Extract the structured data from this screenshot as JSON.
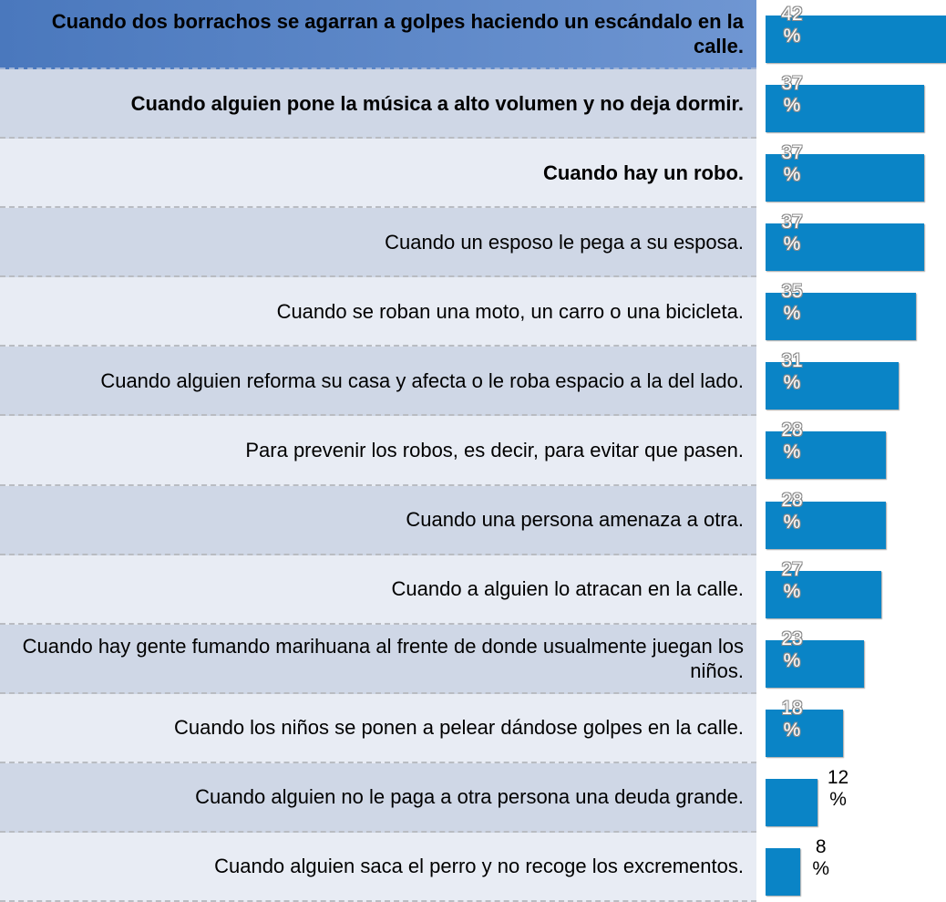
{
  "chart_data": {
    "type": "bar",
    "orientation": "horizontal",
    "color": "#0a84c6",
    "categories": [
      "Cuando dos borrachos se agarran a golpes haciendo un escándalo en la calle.",
      "Cuando alguien pone la música a alto volumen y no deja dormir.",
      "Cuando hay un robo.",
      "Cuando un esposo le pega a su esposa.",
      "Cuando se roban una moto, un carro o una bicicleta.",
      "Cuando alguien reforma su casa y afecta o le roba espacio a la del lado.",
      "Para prevenir los robos, es decir, para evitar que pasen.",
      "Cuando una persona amenaza a otra.",
      "Cuando a alguien lo atracan en la calle.",
      "Cuando hay gente fumando marihuana al frente de donde usualmente juegan los niños.",
      "Cuando los niños se ponen a pelear dándose golpes en la calle.",
      "Cuando alguien no le paga a otra persona una deuda grande.",
      "Cuando alguien saca el perro y no recoge los excrementos."
    ],
    "bold": [
      true,
      true,
      true,
      false,
      false,
      false,
      false,
      false,
      false,
      false,
      false,
      false,
      false
    ],
    "values": [
      42,
      37,
      37,
      37,
      35,
      31,
      28,
      28,
      27,
      23,
      18,
      12,
      8
    ],
    "value_labels": [
      "42 %",
      "37 %",
      "37 %",
      "37 %",
      "35 %",
      "31 %",
      "28 %",
      "28 %",
      "27 %",
      "23 %",
      "18 %",
      "12 %",
      "8 %"
    ]
  }
}
